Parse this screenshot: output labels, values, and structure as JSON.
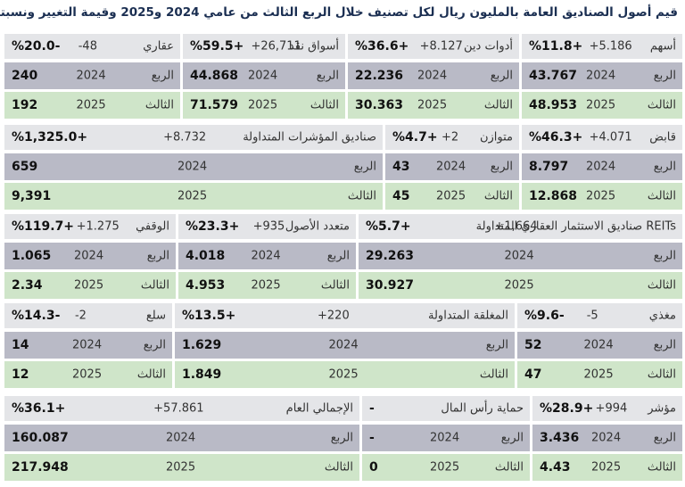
{
  "title": "قيم أصول الصناديق العامة بالمليون ريال لكل تصنيف خلال الربع الثالث من عامي 2024 و2025 وقيمة التغيير ونسبته:",
  "row_labels": [
    "الربع",
    "الثالث"
  ],
  "years": [
    "2024",
    "2025"
  ],
  "blocks": [
    [
      {
        "name": "أسهم",
        "change": "+5.186",
        "pct": "%11.8+",
        "values": [
          "43.767",
          "48.953"
        ]
      },
      {
        "name": "أدوات دين",
        "change": "+8.127",
        "pct": "%36.6+",
        "values": [
          "22.236",
          "30.363"
        ]
      },
      {
        "name": "أسواق نقد",
        "change": "+26,711",
        "pct": "%59.5+",
        "values": [
          "44.868",
          "71.579"
        ]
      },
      {
        "name": "عقاري",
        "change": "-48",
        "pct": "%20.0-",
        "values": [
          "240",
          "192"
        ]
      }
    ],
    [
      {
        "name": "قابض",
        "change": "+4.071",
        "pct": "%46.3+",
        "values": [
          "8.797",
          "12.868"
        ]
      },
      {
        "name": "متوازن",
        "change": "+2",
        "pct": "%4.7+",
        "values": [
          "43",
          "45"
        ]
      },
      {
        "name": "صناديق المؤشرات المتداولة",
        "change": "+8.732",
        "pct": "%1,325.0+",
        "values": [
          "659",
          "9,391"
        ]
      }
    ],
    [
      {
        "name": "صناديق الاستثمار العقاري المتداولة REITs",
        "change": "+1,664",
        "pct": "%5.7+",
        "values": [
          "29.263",
          "30.927"
        ]
      },
      {
        "name": "متعدد الأصول",
        "change": "+935",
        "pct": "%23.3+",
        "values": [
          "4.018",
          "4.953"
        ]
      },
      {
        "name": "الوقفي",
        "change": "+1.275",
        "pct": "%119.7+",
        "values": [
          "1.065",
          "2.34"
        ]
      }
    ],
    [
      {
        "name": "مغذي",
        "change": "-5",
        "pct": "%9.6-",
        "values": [
          "52",
          "47"
        ]
      },
      {
        "name": "المغلقة المتداولة",
        "change": "+220",
        "pct": "%13.5+",
        "values": [
          "1.629",
          "1.849"
        ]
      },
      {
        "name": "سلع",
        "change": "-2",
        "pct": "%14.3-",
        "values": [
          "14",
          "12"
        ]
      }
    ],
    [
      {
        "name": "مؤشر",
        "change": "+994",
        "pct": "%28.9+",
        "values": [
          "3.436",
          "4.43"
        ]
      },
      {
        "name": "حماية رأس المال",
        "pct": "-",
        "values": [
          "-",
          "0"
        ]
      },
      {
        "name": "الإجمالي العام",
        "change": "+57.861",
        "pct": "%36.1+",
        "values": [
          "160.087",
          "217.948"
        ]
      }
    ]
  ]
}
